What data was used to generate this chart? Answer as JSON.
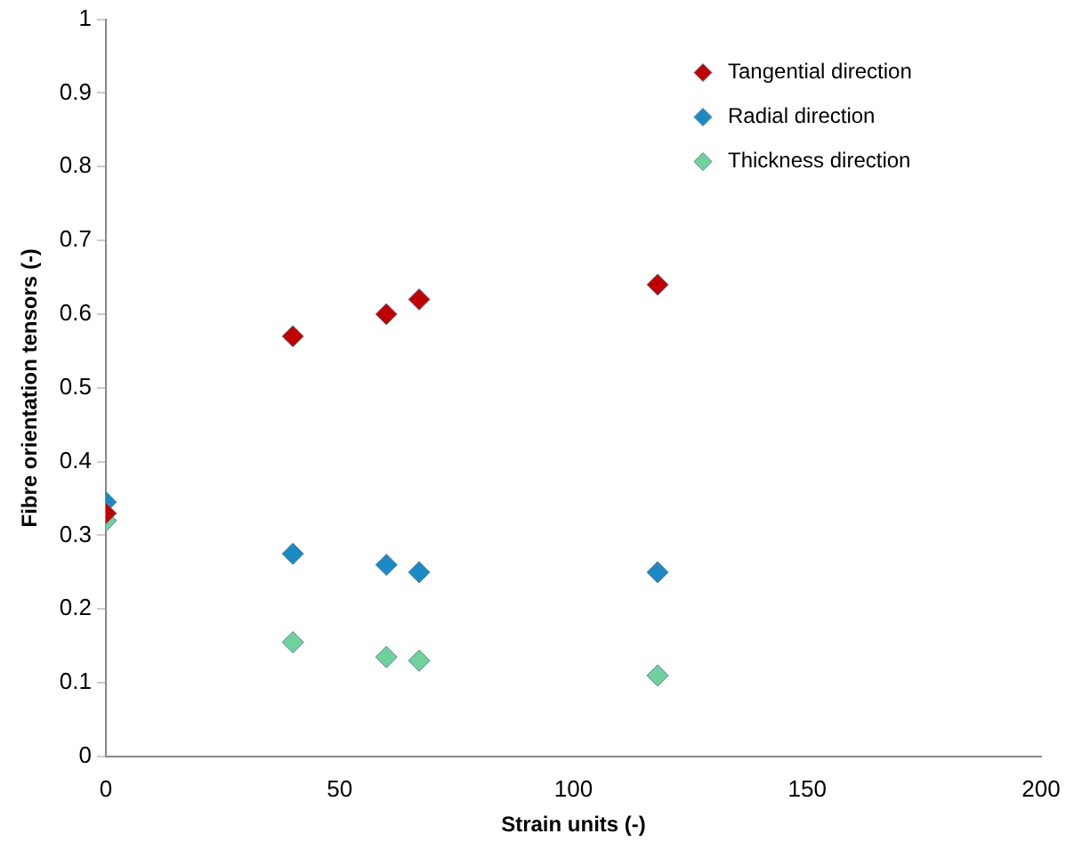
{
  "chart_data": {
    "type": "scatter",
    "xlabel": "Strain units (-)",
    "ylabel": "Fibre orientation tensors (-)",
    "x": [
      0,
      40,
      60,
      67,
      118
    ],
    "series": [
      {
        "name": "Tangential direction",
        "color": "#c00000",
        "values": [
          0.33,
          0.57,
          0.6,
          0.62,
          0.64
        ]
      },
      {
        "name": "Radial direction",
        "color": "#1b8ac4",
        "values": [
          0.345,
          0.275,
          0.26,
          0.25,
          0.25
        ]
      },
      {
        "name": "Thickness direction",
        "color": "#6fd29a",
        "values": [
          0.32,
          0.155,
          0.135,
          0.13,
          0.11
        ]
      }
    ],
    "xlim": [
      0,
      200
    ],
    "xticks": [
      0,
      50,
      100,
      150,
      200
    ],
    "ylim": [
      0,
      1
    ],
    "yticks": [
      0,
      0.1,
      0.2,
      0.3,
      0.4,
      0.5,
      0.6,
      0.7,
      0.8,
      0.9,
      1
    ],
    "grid": false,
    "legend": "top right",
    "marker": "diamond"
  }
}
